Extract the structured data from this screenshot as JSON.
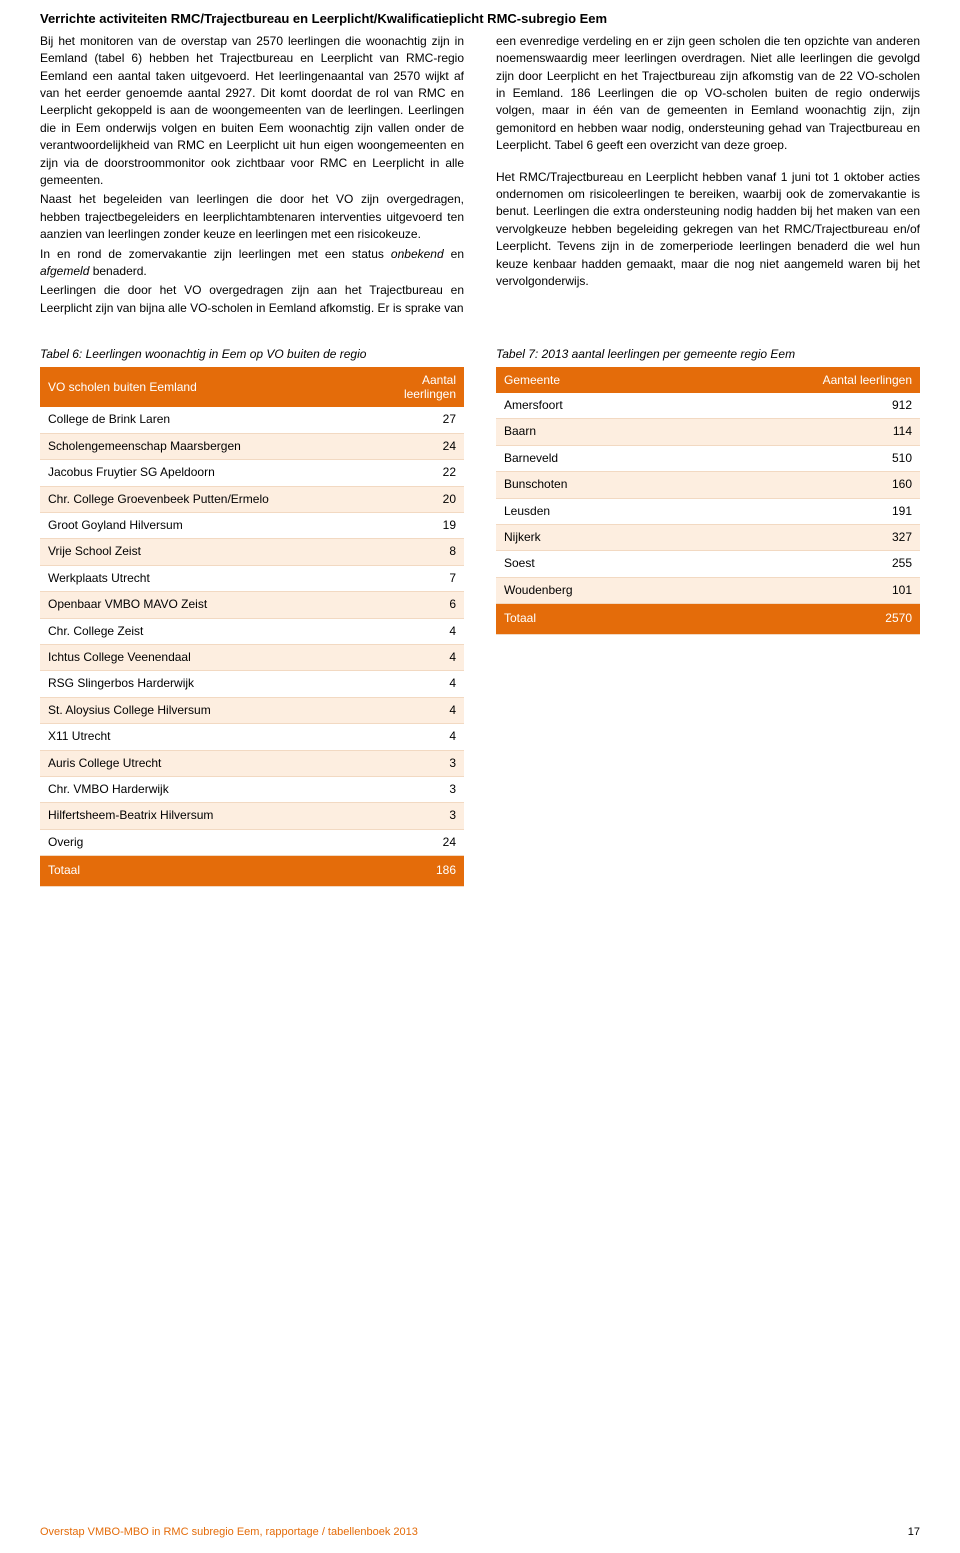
{
  "title": "Verrichte activiteiten RMC/Trajectbureau en Leerplicht/Kwalificatieplicht RMC-subregio Eem",
  "left": {
    "p1a": "Bij het monitoren van de overstap van 2570 leerlingen die woonachtig zijn in Eemland (tabel 6) hebben het Trajectbureau en Leerplicht van RMC-regio Eemland een aantal taken uitgevoerd. Het leerlingenaantal van 2570 wijkt af van het eerder genoemde aantal 2927. Dit komt doordat de rol van RMC en Leerplicht gekoppeld is aan de woongemeenten van de leerlingen. Leerlingen die in Eem onderwijs volgen en buiten Eem woonachtig zijn vallen onder de verantwoordelijkheid van RMC en Leerplicht uit hun eigen woongemeenten en zijn via de doorstroommonitor ook zichtbaar voor RMC en Leerplicht in alle gemeenten.",
    "p1b": "Naast het begeleiden van leerlingen die door het VO zijn overgedragen, hebben trajectbegeleiders en leerplichtambtenaren interventies uitgevoerd ten aanzien van leerlingen zonder keuze en leerlingen met een risicokeuze.",
    "p1c_pre": "In en rond de zomervakantie zijn leerlingen met een status ",
    "p1c_i1": "onbekend",
    "p1c_mid": " en ",
    "p1c_i2": "afgemeld",
    "p1c_post": " benaderd.",
    "p1d": "Leerlingen die door het VO overgedragen zijn aan het Trajectbureau en Leerplicht zijn van bijna alle VO-scholen in Eemland afkomstig. Er is sprake van"
  },
  "right": {
    "p1": "een evenredige verdeling en er zijn geen scholen die ten opzichte van anderen noemenswaardig meer leerlingen overdragen. Niet alle leerlingen die gevolgd zijn door Leerplicht en het Trajectbureau zijn afkomstig van de 22 VO-scholen in Eemland. 186 Leerlingen die op VO-scholen buiten de regio onderwijs volgen, maar in één van de gemeenten in Eemland woonachtig zijn, zijn gemonitord en hebben waar nodig, ondersteuning gehad van Trajectbureau en Leerplicht. Tabel 6 geeft een overzicht van deze groep.",
    "p2": "Het RMC/Trajectbureau en Leerplicht hebben vanaf 1 juni tot 1 oktober acties ondernomen om risicoleerlingen te bereiken, waarbij ook de zomervakantie is benut. Leerlingen die extra ondersteuning nodig hadden bij het maken van een vervolgkeuze hebben begeleiding gekregen van het RMC/Trajectbureau en/of Leerplicht. Tevens zijn in de zomerperiode leerlingen benaderd die wel hun keuze kenbaar hadden gemaakt, maar die nog niet aangemeld waren bij het vervolgonderwijs."
  },
  "table6": {
    "caption": "Tabel 6: Leerlingen woonachtig in Eem op VO buiten de regio",
    "col1": "VO scholen buiten Eemland",
    "col2a": "Aantal",
    "col2b": "leerlingen",
    "rows": [
      {
        "name": "College de Brink Laren",
        "n": "27"
      },
      {
        "name": "Scholengemeenschap Maarsbergen",
        "n": "24"
      },
      {
        "name": "Jacobus Fruytier SG Apeldoorn",
        "n": "22"
      },
      {
        "name": "Chr. College Groevenbeek Putten/Ermelo",
        "n": "20"
      },
      {
        "name": "Groot Goyland Hilversum",
        "n": "19"
      },
      {
        "name": "Vrije School Zeist",
        "n": "8"
      },
      {
        "name": "Werkplaats Utrecht",
        "n": "7"
      },
      {
        "name": "Openbaar VMBO MAVO Zeist",
        "n": "6"
      },
      {
        "name": "Chr. College Zeist",
        "n": "4"
      },
      {
        "name": "Ichtus College Veenendaal",
        "n": "4"
      },
      {
        "name": "RSG Slingerbos Harderwijk",
        "n": "4"
      },
      {
        "name": "St. Aloysius College Hilversum",
        "n": "4"
      },
      {
        "name": "X11 Utrecht",
        "n": "4"
      },
      {
        "name": "Auris College Utrecht",
        "n": "3"
      },
      {
        "name": "Chr. VMBO Harderwijk",
        "n": "3"
      },
      {
        "name": "Hilfertsheem-Beatrix Hilversum",
        "n": "3"
      },
      {
        "name": "Overig",
        "n": "24"
      }
    ],
    "total_label": "Totaal",
    "total_n": "186"
  },
  "table7": {
    "caption": "Tabel 7: 2013 aantal leerlingen per gemeente regio Eem",
    "col1": "Gemeente",
    "col2": "Aantal leerlingen",
    "rows": [
      {
        "name": "Amersfoort",
        "n": "912"
      },
      {
        "name": "Baarn",
        "n": "114"
      },
      {
        "name": "Barneveld",
        "n": "510"
      },
      {
        "name": "Bunschoten",
        "n": "160"
      },
      {
        "name": "Leusden",
        "n": "191"
      },
      {
        "name": "Nijkerk",
        "n": "327"
      },
      {
        "name": "Soest",
        "n": "255"
      },
      {
        "name": "Woudenberg",
        "n": "101"
      }
    ],
    "total_label": "Totaal",
    "total_n": "2570"
  },
  "footer": {
    "left": "Overstap VMBO-MBO in RMC subregio Eem, rapportage / tabellenboek 2013",
    "pagenum": "17"
  }
}
